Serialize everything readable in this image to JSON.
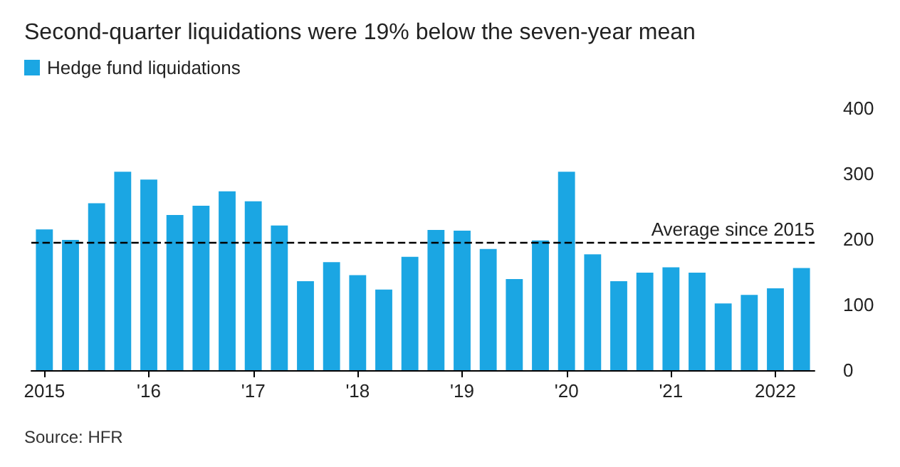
{
  "chart_data": {
    "type": "bar",
    "title": "Second-quarter liquidations were 19% below the seven-year mean",
    "categories": [
      "2015",
      null,
      null,
      null,
      "'16",
      null,
      null,
      null,
      "'17",
      null,
      null,
      null,
      "'18",
      null,
      null,
      null,
      "'19",
      null,
      null,
      null,
      "'20",
      null,
      null,
      null,
      "'21",
      null,
      null,
      null,
      "2022",
      null
    ],
    "series": [
      {
        "name": "Hedge fund liquidations",
        "color": "#1ba6e3",
        "values": [
          215,
          199,
          255,
          303,
          291,
          237,
          251,
          273,
          258,
          221,
          136,
          165,
          145,
          123,
          173,
          214,
          213,
          185,
          139,
          198,
          303,
          177,
          136,
          149,
          157,
          149,
          102,
          115,
          125,
          156
        ]
      }
    ],
    "ylim": [
      0,
      400
    ],
    "yticks": [
      0,
      100,
      200,
      300,
      400
    ],
    "grid": false,
    "legend": "top left",
    "ref_lines": [
      {
        "axis": "y",
        "value": 195,
        "label": "Average since 2015",
        "line_style": "dashed",
        "color": "#000000"
      }
    ],
    "annotations": [
      "Source: HFR"
    ]
  }
}
